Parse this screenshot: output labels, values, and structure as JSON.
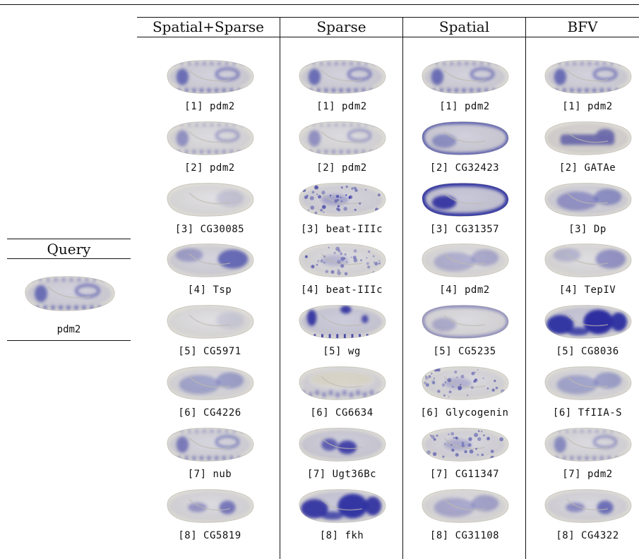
{
  "query": {
    "title": "Query",
    "gene": "pdm2",
    "style": {
      "pattern": "stripes",
      "intensity": 0.75
    }
  },
  "columns": [
    {
      "header": "Spatial+Sparse",
      "results": [
        {
          "label": "[1] pdm2",
          "pattern": "stripes",
          "intensity": 0.75
        },
        {
          "label": "[2] pdm2",
          "pattern": "stripes",
          "intensity": 0.5
        },
        {
          "label": "[3] CG30085",
          "pattern": "faint",
          "intensity": 0.25
        },
        {
          "label": "[4] Tsp",
          "pattern": "posterior",
          "intensity": 0.7
        },
        {
          "label": "[5] CG5971",
          "pattern": "faint",
          "intensity": 0.2
        },
        {
          "label": "[6] CG4226",
          "pattern": "diffuse",
          "intensity": 0.55
        },
        {
          "label": "[7] nub",
          "pattern": "stripes",
          "intensity": 0.65
        },
        {
          "label": "[8] CG5819",
          "pattern": "central",
          "intensity": 0.55
        }
      ]
    },
    {
      "header": "Sparse",
      "results": [
        {
          "label": "[1] pdm2",
          "pattern": "stripes",
          "intensity": 0.75
        },
        {
          "label": "[2] pdm2",
          "pattern": "stripes",
          "intensity": 0.5
        },
        {
          "label": "[3] beat-IIIc",
          "pattern": "speckled",
          "intensity": 0.7
        },
        {
          "label": "[4] beat-IIIc",
          "pattern": "speckled",
          "intensity": 0.5
        },
        {
          "label": "[5] wg",
          "pattern": "dots",
          "intensity": 0.9
        },
        {
          "label": "[6] CG6634",
          "pattern": "ventral",
          "intensity": 0.6
        },
        {
          "label": "[7] Ugt36Bc",
          "pattern": "blobs",
          "intensity": 0.85
        },
        {
          "label": "[8] fkh",
          "pattern": "dense",
          "intensity": 0.95
        }
      ]
    },
    {
      "header": "Spatial",
      "results": [
        {
          "label": "[1] pdm2",
          "pattern": "stripes",
          "intensity": 0.75
        },
        {
          "label": "[2] CG32423",
          "pattern": "rim",
          "intensity": 0.8
        },
        {
          "label": "[3] CG31357",
          "pattern": "dark-rim",
          "intensity": 1.0
        },
        {
          "label": "[4] pdm2",
          "pattern": "diffuse",
          "intensity": 0.45
        },
        {
          "label": "[5] CG5235",
          "pattern": "rim",
          "intensity": 0.5
        },
        {
          "label": "[6] Glycogenin",
          "pattern": "speckled",
          "intensity": 0.55
        },
        {
          "label": "[7] CG11347",
          "pattern": "speckled",
          "intensity": 0.6
        },
        {
          "label": "[8] CG31108",
          "pattern": "diffuse",
          "intensity": 0.5
        }
      ]
    },
    {
      "header": "BFV",
      "results": [
        {
          "label": "[1] pdm2",
          "pattern": "stripes",
          "intensity": 0.75
        },
        {
          "label": "[2] GATAe",
          "pattern": "gut",
          "intensity": 0.95
        },
        {
          "label": "[3] Dp",
          "pattern": "diffuse",
          "intensity": 0.7
        },
        {
          "label": "[4] TepIV",
          "pattern": "posterior",
          "intensity": 0.45
        },
        {
          "label": "[5] CG8036",
          "pattern": "dense",
          "intensity": 1.0
        },
        {
          "label": "[6] TfIIA-S",
          "pattern": "diffuse",
          "intensity": 0.55
        },
        {
          "label": "[7] pdm2",
          "pattern": "stripes",
          "intensity": 0.55
        },
        {
          "label": "[8] CG4322",
          "pattern": "central",
          "intensity": 0.6
        }
      ]
    }
  ],
  "colors": {
    "stain": "#2d2fa0",
    "embryo_fill": "#dcdad2",
    "embryo_light": "#ecebe6",
    "rule": "#111111"
  }
}
